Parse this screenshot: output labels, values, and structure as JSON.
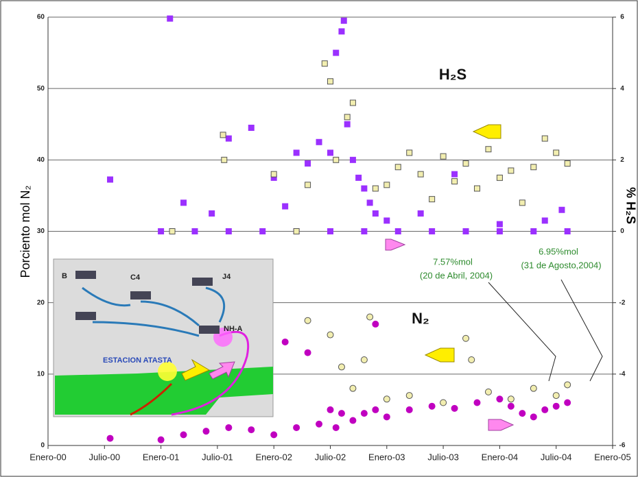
{
  "chart_data": {
    "type": "scatter",
    "y_label": "Porciento mol N₂",
    "y2_label": "% H₂S",
    "xlim": [
      2000,
      2005
    ],
    "xticks": [
      {
        "value": 2000,
        "label": "Enero-00"
      },
      {
        "value": 2000.5,
        "label": "Julio-00"
      },
      {
        "value": 2001,
        "label": "Enero-01"
      },
      {
        "value": 2001.5,
        "label": "Julio-01"
      },
      {
        "value": 2002,
        "label": "Enero-02"
      },
      {
        "value": 2002.5,
        "label": "Julio-02"
      },
      {
        "value": 2003,
        "label": "Enero-03"
      },
      {
        "value": 2003.5,
        "label": "Julio-03"
      },
      {
        "value": 2004,
        "label": "Enero-04"
      },
      {
        "value": 2004.5,
        "label": "Julio-04"
      },
      {
        "value": 2005,
        "label": "Enero-05"
      }
    ],
    "ylim": [
      0,
      60
    ],
    "yticks": [
      0,
      10,
      20,
      30,
      40,
      50,
      60
    ],
    "y2lim": [
      -6,
      6
    ],
    "y2ticks": [
      -6,
      -4,
      -2,
      0,
      2,
      4,
      6
    ],
    "grid": true,
    "series": [
      {
        "color": "#9b30ff",
        "marker": "square",
        "axis": "y2",
        "x": [
          2000.55,
          2001.08,
          2001.2,
          2001.45,
          2001.6,
          2001.8,
          2002.0,
          2002.1,
          2002.2,
          2002.3,
          2002.4,
          2002.5,
          2002.55,
          2002.6,
          2002.62,
          2002.65,
          2002.7,
          2002.75,
          2002.8,
          2002.85,
          2002.9,
          2003.0,
          2003.3,
          2003.6,
          2004.0,
          2004.4,
          2004.55,
          2001.0,
          2001.3,
          2001.6,
          2001.9,
          2002.2,
          2002.5,
          2002.8,
          2003.1,
          2003.4,
          2003.7,
          2004.0,
          2004.3,
          2004.6
        ],
        "values": [
          1.45,
          5.96,
          0.8,
          0.5,
          2.6,
          2.9,
          1.5,
          0.7,
          2.2,
          1.9,
          2.5,
          2.2,
          5.0,
          5.6,
          5.9,
          3.0,
          2.0,
          1.5,
          1.2,
          0.8,
          0.5,
          0.3,
          0.5,
          1.6,
          0.2,
          0.3,
          0.6,
          0,
          0,
          0,
          0,
          0,
          0,
          0,
          0,
          0,
          0,
          0,
          0,
          0
        ]
      },
      {
        "color": "#f2eeb0",
        "marker": "square",
        "axis": "y2",
        "x": [
          2001.55,
          2001.56,
          2002.0,
          2002.3,
          2002.45,
          2002.5,
          2002.55,
          2002.65,
          2002.7,
          2002.9,
          2003.0,
          2003.1,
          2003.2,
          2003.3,
          2003.4,
          2003.5,
          2003.6,
          2003.7,
          2003.8,
          2003.9,
          2004.0,
          2004.1,
          2004.2,
          2004.3,
          2004.4,
          2004.5,
          2004.6,
          2001.1,
          2002.2
        ],
        "values": [
          2.7,
          2.0,
          1.6,
          1.3,
          4.7,
          4.2,
          2.0,
          3.2,
          3.6,
          1.2,
          1.3,
          1.8,
          2.2,
          1.6,
          0.9,
          2.1,
          1.4,
          1.9,
          1.2,
          2.3,
          1.5,
          1.7,
          0.8,
          1.8,
          2.6,
          2.2,
          1.9,
          0,
          0
        ]
      },
      {
        "color": "#c000c0",
        "marker": "circle",
        "x": [
          2000.55,
          2001.0,
          2001.2,
          2001.4,
          2001.6,
          2001.8,
          2002.0,
          2002.1,
          2002.2,
          2002.3,
          2002.4,
          2002.5,
          2002.55,
          2002.6,
          2002.7,
          2002.8,
          2002.9,
          2003.0,
          2003.2,
          2003.4,
          2003.6,
          2003.8,
          2004.0,
          2004.1,
          2004.2,
          2004.3,
          2004.4,
          2004.5,
          2004.6,
          2002.9
        ],
        "values": [
          1.0,
          0.8,
          1.5,
          2.0,
          2.5,
          2.2,
          1.5,
          14.5,
          2.5,
          13.0,
          3.0,
          5.0,
          2.5,
          4.5,
          3.5,
          4.5,
          5.0,
          4.0,
          5.0,
          5.5,
          5.2,
          6.0,
          6.5,
          5.5,
          4.5,
          4.0,
          5.0,
          5.5,
          6.0,
          17.0
        ]
      },
      {
        "color": "#f2eeb0",
        "marker": "circle",
        "x": [
          2002.5,
          2002.6,
          2002.7,
          2002.8,
          2002.85,
          2003.0,
          2003.2,
          2003.5,
          2003.7,
          2003.75,
          2003.9,
          2004.1,
          2004.3,
          2004.5,
          2004.6,
          2002.3
        ],
        "values": [
          15.5,
          11.0,
          8.0,
          12.0,
          18.0,
          6.5,
          7.0,
          6.0,
          15.0,
          12.0,
          7.5,
          6.5,
          8.0,
          7.0,
          8.5,
          17.5
        ]
      }
    ],
    "annotations": [
      "H₂S",
      "N₂",
      "7.57%mol",
      "(20 de Abril, 2004)",
      "6.95%mol",
      "(31 de Agosto,2004)"
    ],
    "inset_labels": [
      "B",
      "C4",
      "J4",
      "NH-A",
      "ESTACION ATASTA"
    ]
  }
}
